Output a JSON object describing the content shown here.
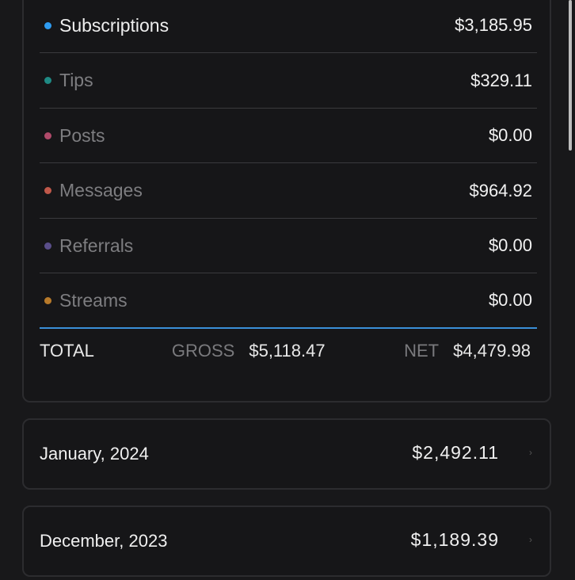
{
  "categories": [
    {
      "label": "Subscriptions",
      "amount": "$3,185.95",
      "color": "#2e9bf0",
      "active": true
    },
    {
      "label": "Tips",
      "amount": "$329.11",
      "color": "#1f8a84",
      "active": false
    },
    {
      "label": "Posts",
      "amount": "$0.00",
      "color": "#b04a6a",
      "active": false
    },
    {
      "label": "Messages",
      "amount": "$964.92",
      "color": "#c0584a",
      "active": false
    },
    {
      "label": "Referrals",
      "amount": "$0.00",
      "color": "#5a4e8a",
      "active": false
    },
    {
      "label": "Streams",
      "amount": "$0.00",
      "color": "#b87a2a",
      "active": false
    }
  ],
  "total": {
    "label": "TOTAL",
    "gross_label": "GROSS",
    "gross": "$5,118.47",
    "net_label": "NET",
    "net": "$4,479.98"
  },
  "accent": "#3a8fd8",
  "months": [
    {
      "name": "January, 2024",
      "amount": "$2,492.11",
      "icon": "chevron-icon"
    },
    {
      "name": "December, 2023",
      "amount": "$1,189.39",
      "icon": "chevron-icon"
    }
  ]
}
